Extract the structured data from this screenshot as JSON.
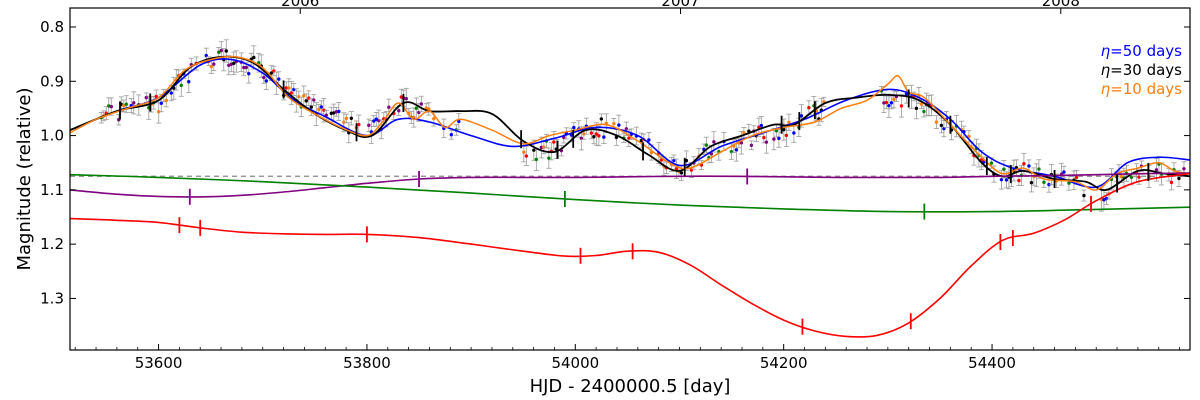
{
  "chart_data": {
    "type": "line",
    "xlabel": "HJD - 2400000.5 [day]",
    "ylabel": "Magnitude (relative)",
    "xlim": [
      53515,
      54590
    ],
    "ylim": [
      1.395,
      0.765
    ],
    "y_inverted": true,
    "x_ticks": [
      53600,
      53800,
      54000,
      54200,
      54400
    ],
    "x_tick_labels": [
      "53600",
      "53800",
      "54000",
      "54200",
      "54400"
    ],
    "y_ticks": [
      0.8,
      0.9,
      1.0,
      1.1,
      1.2,
      1.3
    ],
    "y_tick_labels": [
      "0.8",
      "0.9",
      "1.0",
      "1.1",
      "1.2",
      "1.3"
    ],
    "top_axis": {
      "ticks": [
        53736,
        54101,
        54466
      ],
      "labels": [
        "2006",
        "2007",
        "2008"
      ]
    },
    "grid": false,
    "legend_position": "top-right",
    "legend": [
      {
        "symbol": "η",
        "eq": "=50",
        "unit": "days",
        "color": "#0000ff"
      },
      {
        "symbol": "η",
        "eq": "=30",
        "unit": "days",
        "color": "#000000"
      },
      {
        "symbol": "η",
        "eq": "=10",
        "unit": "days",
        "color": "#ff7f0e"
      }
    ],
    "reference_line": {
      "y": 1.075,
      "style": "dashed",
      "color": "#888888"
    },
    "observations": {
      "knots": [
        [
          53515,
          0.985
        ],
        [
          53560,
          0.955
        ],
        [
          53600,
          0.94
        ],
        [
          53640,
          0.87
        ],
        [
          53670,
          0.855
        ],
        [
          53700,
          0.88
        ],
        [
          53730,
          0.93
        ],
        [
          53760,
          0.96
        ],
        [
          53800,
          1.0
        ],
        [
          53830,
          0.945
        ],
        [
          53860,
          0.96
        ],
        [
          53900,
          1.0
        ],
        [
          53940,
          1.02
        ],
        [
          53970,
          1.03
        ],
        [
          54000,
          0.995
        ],
        [
          54030,
          0.985
        ],
        [
          54060,
          1.01
        ],
        [
          54100,
          1.06
        ],
        [
          54130,
          1.03
        ],
        [
          54160,
          1.005
        ],
        [
          54200,
          0.99
        ],
        [
          54230,
          0.96
        ],
        [
          54260,
          0.94
        ],
        [
          54300,
          0.93
        ],
        [
          54330,
          0.94
        ],
        [
          54370,
          1.0
        ],
        [
          54400,
          1.065
        ],
        [
          54440,
          1.07
        ],
        [
          54480,
          1.09
        ],
        [
          54510,
          1.105
        ],
        [
          54540,
          1.06
        ],
        [
          54560,
          1.07
        ],
        [
          54590,
          1.075
        ]
      ],
      "seasonal_gaps": [
        [
          53890,
          53950
        ],
        [
          54240,
          54290
        ]
      ],
      "marker_colors": [
        "#0000ff",
        "#008000",
        "#800080",
        "#000000",
        "#ff0000",
        "#ff7f0e"
      ]
    },
    "series": [
      {
        "color": "#0000ff",
        "width": 1.6,
        "x": [
          53515,
          53560,
          53600,
          53640,
          53670,
          53700,
          53730,
          53760,
          53800,
          53830,
          53860,
          53900,
          53940,
          53980,
          54020,
          54060,
          54100,
          54140,
          54180,
          54220,
          54260,
          54300,
          54330,
          54360,
          54390,
          54420,
          54460,
          54500,
          54530,
          54560,
          54590
        ],
        "y": [
          0.99,
          0.955,
          0.93,
          0.87,
          0.86,
          0.885,
          0.935,
          0.965,
          1.0,
          0.97,
          0.975,
          1.0,
          1.02,
          1.005,
          0.985,
          1.0,
          1.055,
          1.02,
          0.995,
          0.97,
          0.935,
          0.915,
          0.93,
          0.97,
          1.03,
          1.06,
          1.075,
          1.095,
          1.05,
          1.04,
          1.045
        ]
      },
      {
        "color": "#000000",
        "width": 1.8,
        "x": [
          53515,
          53560,
          53600,
          53630,
          53660,
          53690,
          53720,
          53750,
          53780,
          53805,
          53835,
          53860,
          53890,
          53920,
          53950,
          53980,
          54010,
          54040,
          54070,
          54100,
          54130,
          54160,
          54190,
          54210,
          54240,
          54270,
          54300,
          54330,
          54360,
          54390,
          54410,
          54430,
          54460,
          54490,
          54510,
          54540,
          54565,
          54590
        ],
        "y": [
          0.99,
          0.955,
          0.935,
          0.875,
          0.855,
          0.865,
          0.915,
          0.96,
          0.99,
          1.0,
          0.94,
          0.955,
          0.955,
          0.96,
          1.01,
          1.03,
          0.99,
          1.0,
          1.035,
          1.065,
          1.02,
          1.0,
          0.98,
          0.98,
          0.94,
          0.93,
          0.925,
          0.935,
          0.98,
          1.05,
          1.075,
          1.065,
          1.08,
          1.085,
          1.1,
          1.065,
          1.07,
          1.075
        ]
      },
      {
        "color": "#ff7f0e",
        "width": 1.5,
        "x": [
          53515,
          53540,
          53570,
          53600,
          53625,
          53650,
          53675,
          53700,
          53725,
          53750,
          53775,
          53800,
          53815,
          53830,
          53845,
          53860,
          53875,
          53890,
          53920,
          53950,
          53975,
          54000,
          54030,
          54060,
          54090,
          54110,
          54140,
          54170,
          54200,
          54230,
          54255,
          54280,
          54300,
          54310,
          54320,
          54335,
          54360,
          54390,
          54410,
          54430,
          54450,
          54480,
          54500,
          54520,
          54540,
          54560,
          54575,
          54590
        ],
        "y": [
          0.995,
          0.97,
          0.95,
          0.93,
          0.88,
          0.86,
          0.855,
          0.875,
          0.93,
          0.96,
          0.985,
          1.0,
          0.975,
          0.94,
          0.97,
          0.955,
          0.985,
          0.97,
          0.99,
          1.015,
          1.0,
          0.99,
          0.98,
          1.01,
          1.05,
          1.06,
          1.03,
          1.0,
          0.985,
          0.975,
          0.95,
          0.935,
          0.905,
          0.89,
          0.92,
          0.93,
          0.98,
          1.04,
          1.07,
          1.06,
          1.08,
          1.085,
          1.1,
          1.07,
          1.06,
          1.05,
          1.065,
          1.07
        ]
      },
      {
        "color": "#800080",
        "width": 1.6,
        "x": [
          53515,
          53560,
          53600,
          53640,
          53680,
          53720,
          53760,
          53800,
          53850,
          53900,
          53950,
          54000,
          54050,
          54100,
          54150,
          54200,
          54250,
          54300,
          54350,
          54400,
          54450,
          54500,
          54550,
          54590
        ],
        "y": [
          1.1,
          1.108,
          1.112,
          1.113,
          1.11,
          1.104,
          1.096,
          1.088,
          1.08,
          1.077,
          1.077,
          1.077,
          1.076,
          1.075,
          1.075,
          1.076,
          1.077,
          1.077,
          1.077,
          1.075,
          1.074,
          1.072,
          1.07,
          1.069
        ],
        "ticks_x": [
          53630,
          53850,
          54165
        ]
      },
      {
        "color": "#008000",
        "width": 1.6,
        "x": [
          53515,
          53600,
          53700,
          53800,
          53900,
          54000,
          54100,
          54200,
          54300,
          54400,
          54500,
          54590
        ],
        "y": [
          1.072,
          1.077,
          1.085,
          1.095,
          1.106,
          1.118,
          1.128,
          1.135,
          1.14,
          1.14,
          1.136,
          1.132
        ],
        "ticks_x": [
          53990,
          54335
        ]
      },
      {
        "color": "#ff0000",
        "width": 1.6,
        "x": [
          53515,
          53560,
          53600,
          53640,
          53680,
          53720,
          53760,
          53800,
          53850,
          53900,
          53950,
          53990,
          54020,
          54050,
          54080,
          54110,
          54140,
          54170,
          54200,
          54230,
          54260,
          54290,
          54320,
          54350,
          54380,
          54410,
          54440,
          54470,
          54500,
          54540,
          54590
        ],
        "y": [
          1.153,
          1.156,
          1.16,
          1.17,
          1.178,
          1.181,
          1.182,
          1.182,
          1.188,
          1.2,
          1.213,
          1.222,
          1.221,
          1.213,
          1.215,
          1.238,
          1.275,
          1.31,
          1.34,
          1.36,
          1.37,
          1.368,
          1.345,
          1.3,
          1.24,
          1.193,
          1.18,
          1.155,
          1.12,
          1.085,
          1.07
        ],
        "ticks_x": [
          53620,
          53640,
          53800,
          54005,
          54055,
          54218,
          54322,
          54408,
          54420,
          54495
        ]
      }
    ]
  }
}
